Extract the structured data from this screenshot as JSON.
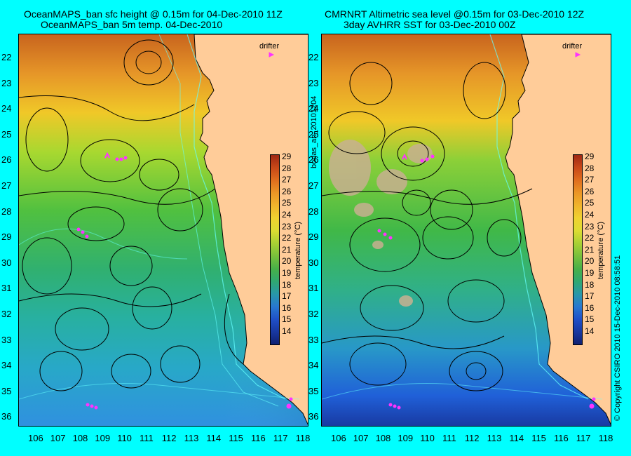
{
  "colors": {
    "background": "#00ffff",
    "land": "#ffcc99",
    "contour": "#000000",
    "drifter": "#ff33ff",
    "coast_bathy": "#66ffff"
  },
  "left_panel": {
    "title_line1": "OceanMAPS_ban sfc height @ 0.15m for 04-Dec-2010 11Z",
    "title_line2": "OceanMAPS_ban 5m temp. 04-Dec-2010",
    "drifter_label": "drifter",
    "colorbar_label": "temperature (°C)"
  },
  "right_panel": {
    "title_line1": "CMRNRT Altimetric sea level  @0.15m  for 03-Dec-2010 12Z",
    "title_line2": "3day AVHRR SST for 03-Dec-2010 00Z",
    "drifter_label": "drifter",
    "colorbar_label": "temperature (°C)"
  },
  "center_text": "bodas_an_20101204",
  "copyright_text": "© Copyright CSIRO 2010    15-Dec-2010 08:58:51",
  "y_ticks": [
    "22",
    "23",
    "24",
    "25",
    "26",
    "27",
    "28",
    "29",
    "30",
    "31",
    "32",
    "33",
    "34",
    "35",
    "36"
  ],
  "x_ticks": [
    "106",
    "107",
    "108",
    "109",
    "110",
    "111",
    "112",
    "113",
    "114",
    "115",
    "116",
    "117",
    "118"
  ],
  "colorbar_ticks": [
    "29",
    "28",
    "27",
    "26",
    "25",
    "24",
    "23",
    "22",
    "21",
    "20",
    "19",
    "18",
    "17",
    "16",
    "15",
    "14"
  ]
}
